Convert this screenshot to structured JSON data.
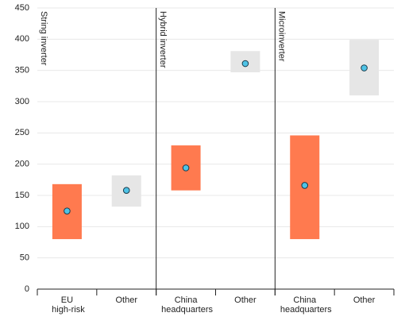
{
  "chart_data": {
    "type": "floating-bar",
    "ylim": [
      0,
      450
    ],
    "yticks": [
      0,
      50,
      100,
      150,
      200,
      250,
      300,
      350,
      400,
      450
    ],
    "grid": true,
    "dot_color": "#4ec3e6",
    "panels": [
      {
        "name": "String inverter",
        "categories": [
          "EU high-risk",
          "Other"
        ],
        "low": [
          80,
          132
        ],
        "high": [
          168,
          182
        ],
        "mid": [
          125,
          158
        ],
        "colors": [
          "#ff7a4f",
          "#e6e6e6"
        ]
      },
      {
        "name": "Hybrid inverter",
        "categories": [
          "China headquarters",
          "Other"
        ],
        "low": [
          158,
          347
        ],
        "high": [
          230,
          381
        ],
        "mid": [
          194,
          361
        ],
        "colors": [
          "#ff7a4f",
          "#e6e6e6"
        ]
      },
      {
        "name": "Microinverter",
        "categories": [
          "China headquarters",
          "Other"
        ],
        "low": [
          80,
          310
        ],
        "high": [
          246,
          399
        ],
        "mid": [
          166,
          354
        ],
        "colors": [
          "#ff7a4f",
          "#e6e6e6"
        ]
      }
    ]
  }
}
